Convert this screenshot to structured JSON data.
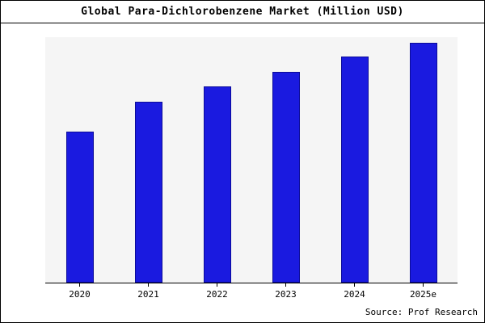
{
  "chart_data": {
    "type": "bar",
    "title": "Global Para-Dichlorobenzene Market (Million USD)",
    "categories": [
      "2020",
      "2021",
      "2022",
      "2023",
      "2024",
      "2025e"
    ],
    "values": [
      630,
      755,
      820,
      880,
      945,
      1000
    ],
    "ylim": [
      0,
      1025
    ],
    "xlabel": "",
    "ylabel": "",
    "grid": false,
    "legend": "none",
    "bar_color": "#1a1ae0",
    "bar_border_color": "#0b0b99",
    "plot_background": "#f5f5f5",
    "source": "Source: Prof Research"
  }
}
